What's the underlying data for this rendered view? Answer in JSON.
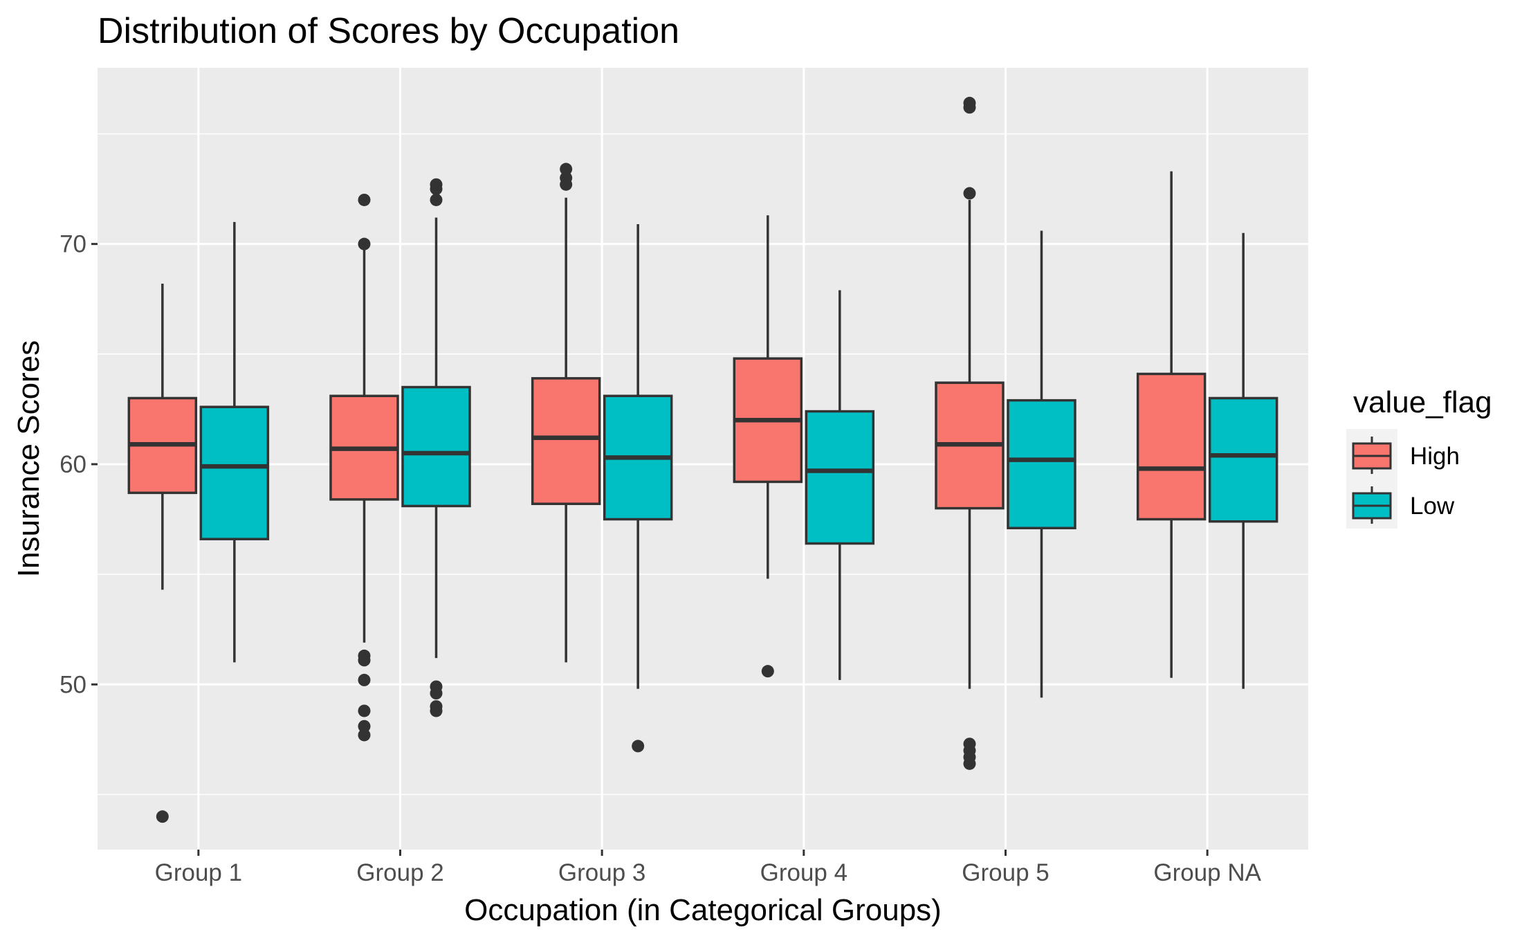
{
  "chart_data": {
    "type": "boxplot",
    "title": "Distribution of Scores by Occupation",
    "xlabel": "Occupation (in Categorical Groups)",
    "ylabel": "Insurance Scores",
    "categories": [
      "Group 1",
      "Group 2",
      "Group 3",
      "Group 4",
      "Group 5",
      "Group NA"
    ],
    "ylim": [
      42.5,
      78.0
    ],
    "y_ticks": [
      50,
      60,
      70
    ],
    "y_minor_ticks": [
      45,
      55,
      65,
      75
    ],
    "grid": true,
    "legend": {
      "title": "value_flag",
      "position": "right",
      "entries": [
        "High",
        "Low"
      ]
    },
    "colors": {
      "High": "#F8766D",
      "Low": "#00BFC4",
      "panel": "#EBEBEB",
      "grid": "#FFFFFF",
      "outline": "#333333"
    },
    "series": [
      {
        "name": "High",
        "boxes": [
          {
            "category": "Group 1",
            "whisker_low": 54.3,
            "q1": 58.7,
            "median": 60.9,
            "q3": 63.0,
            "whisker_high": 68.2,
            "outliers": [
              44.0
            ]
          },
          {
            "category": "Group 2",
            "whisker_low": 51.9,
            "q1": 58.4,
            "median": 60.7,
            "q3": 63.1,
            "whisker_high": 69.8,
            "outliers": [
              72.0,
              70.0,
              51.3,
              51.1,
              50.2,
              48.8,
              48.1,
              47.7
            ]
          },
          {
            "category": "Group 3",
            "whisker_low": 51.0,
            "q1": 58.2,
            "median": 61.2,
            "q3": 63.9,
            "whisker_high": 72.1,
            "outliers": [
              73.4,
              73.0,
              72.7
            ]
          },
          {
            "category": "Group 4",
            "whisker_low": 54.8,
            "q1": 59.2,
            "median": 62.0,
            "q3": 64.8,
            "whisker_high": 71.3,
            "outliers": [
              50.6
            ]
          },
          {
            "category": "Group 5",
            "whisker_low": 49.8,
            "q1": 58.0,
            "median": 60.9,
            "q3": 63.7,
            "whisker_high": 72.0,
            "outliers": [
              76.4,
              76.2,
              72.3,
              47.3,
              47.0,
              46.7,
              46.4
            ]
          },
          {
            "category": "Group NA",
            "whisker_low": 50.3,
            "q1": 57.5,
            "median": 59.8,
            "q3": 64.1,
            "whisker_high": 73.3,
            "outliers": []
          }
        ]
      },
      {
        "name": "Low",
        "boxes": [
          {
            "category": "Group 1",
            "whisker_low": 51.0,
            "q1": 56.6,
            "median": 59.9,
            "q3": 62.6,
            "whisker_high": 71.0,
            "outliers": []
          },
          {
            "category": "Group 2",
            "whisker_low": 51.2,
            "q1": 58.1,
            "median": 60.5,
            "q3": 63.5,
            "whisker_high": 71.2,
            "outliers": [
              72.7,
              72.5,
              72.0,
              49.9,
              49.6,
              49.0,
              48.8
            ]
          },
          {
            "category": "Group 3",
            "whisker_low": 49.8,
            "q1": 57.5,
            "median": 60.3,
            "q3": 63.1,
            "whisker_high": 70.9,
            "outliers": [
              47.2
            ]
          },
          {
            "category": "Group 4",
            "whisker_low": 50.2,
            "q1": 56.4,
            "median": 59.7,
            "q3": 62.4,
            "whisker_high": 67.9,
            "outliers": []
          },
          {
            "category": "Group 5",
            "whisker_low": 49.4,
            "q1": 57.1,
            "median": 60.2,
            "q3": 62.9,
            "whisker_high": 70.6,
            "outliers": []
          },
          {
            "category": "Group NA",
            "whisker_low": 49.8,
            "q1": 57.4,
            "median": 60.4,
            "q3": 63.0,
            "whisker_high": 70.5,
            "outliers": []
          }
        ]
      }
    ]
  }
}
